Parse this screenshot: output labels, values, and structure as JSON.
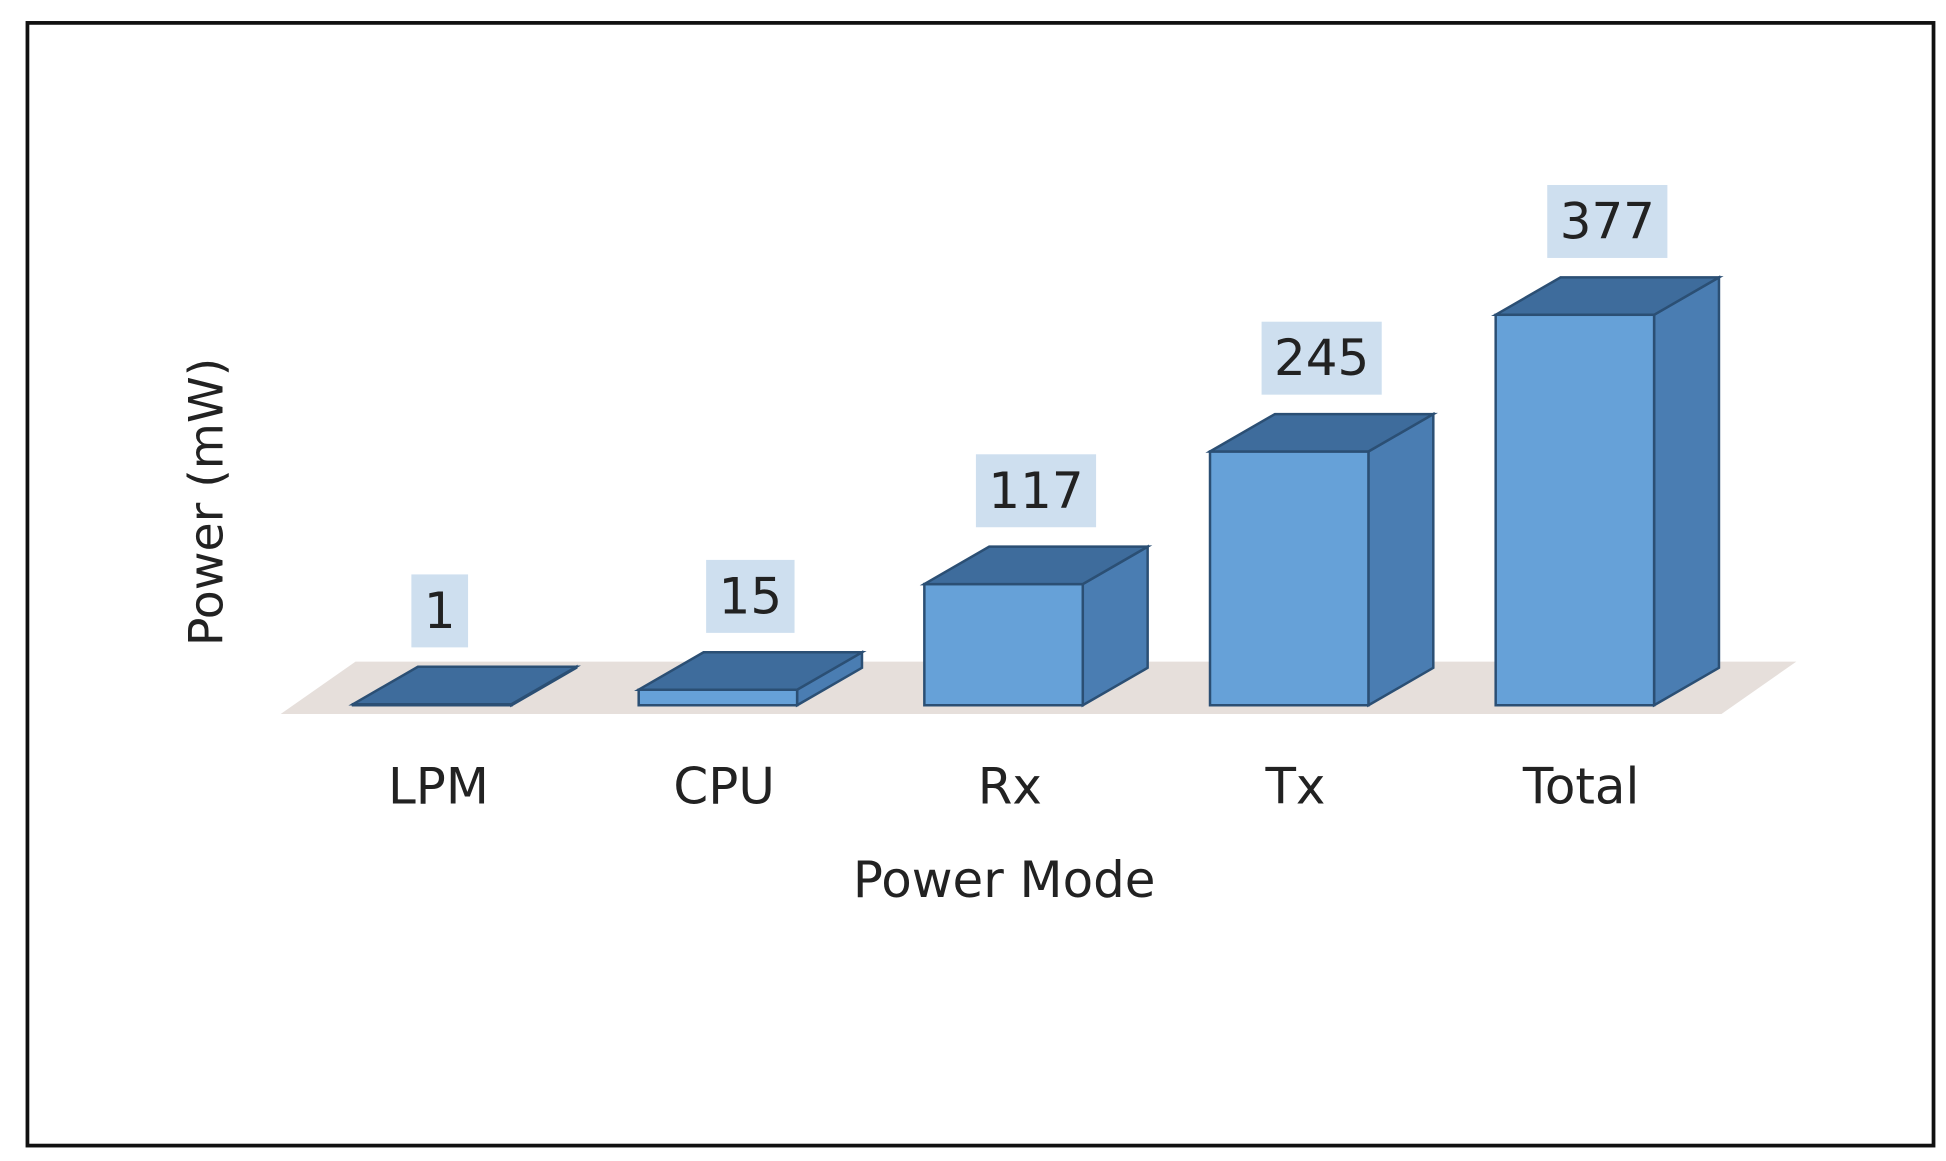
{
  "chart_data": {
    "type": "bar3d",
    "x_label": "Power Mode",
    "y_label": "Power (mW)",
    "categories": [
      "LPM",
      "CPU",
      "Rx",
      "Tx",
      "Total"
    ],
    "values": [
      1,
      15,
      117,
      245,
      377
    ],
    "color": "#66a1d8"
  }
}
